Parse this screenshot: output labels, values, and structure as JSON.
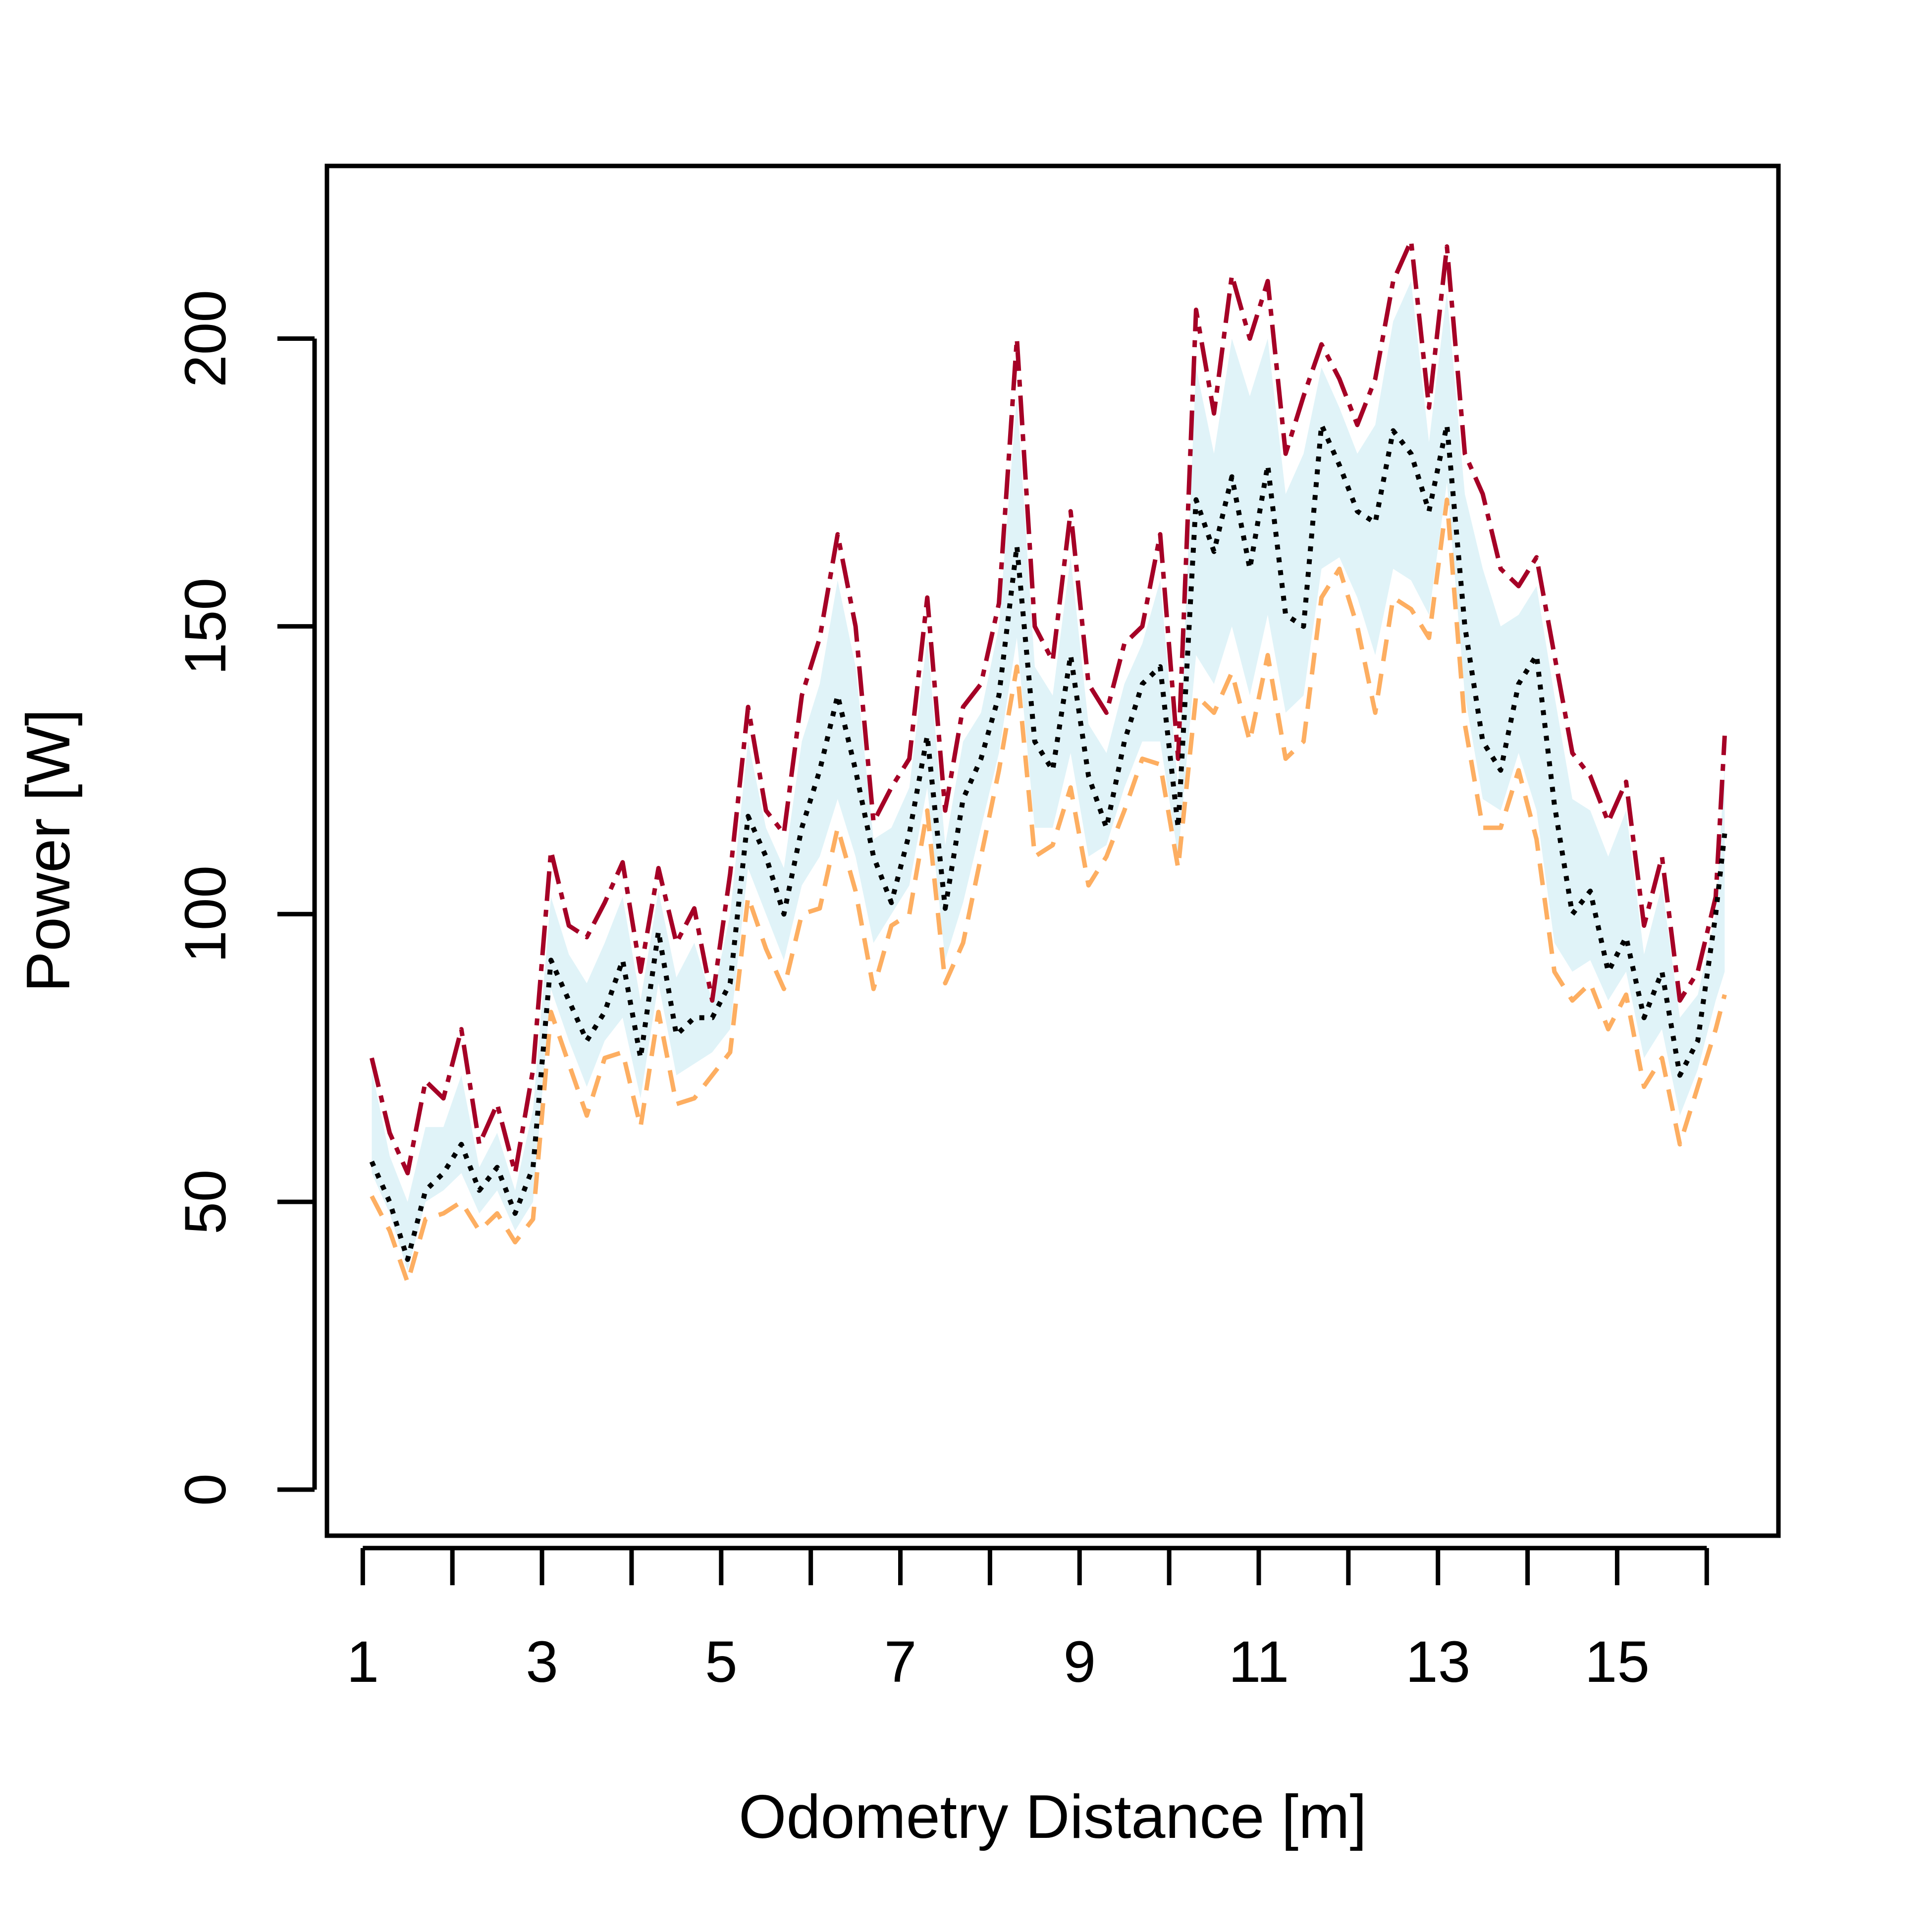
{
  "chart_data": {
    "type": "line",
    "title": "",
    "xlabel": "Odometry Distance [m]",
    "ylabel": "Power [W]",
    "xlim": [
      0.6,
      16.8
    ],
    "ylim": [
      -8,
      230
    ],
    "x_ticks": [
      1,
      2,
      3,
      4,
      5,
      6,
      7,
      8,
      9,
      10,
      11,
      12,
      13,
      14,
      15,
      16
    ],
    "x_tick_labels": [
      "1",
      "",
      "3",
      "",
      "5",
      "",
      "7",
      "",
      "9",
      "",
      "11",
      "",
      "13",
      "",
      "15",
      ""
    ],
    "y_ticks": [
      0,
      50,
      100,
      150,
      200
    ],
    "y_tick_labels": [
      "0",
      "50",
      "100",
      "150",
      "200"
    ],
    "grid": false,
    "legend": "none",
    "colors": {
      "upper": "#a50026",
      "median": "#000000",
      "lower": "#fdae61",
      "band": "#e0f3f8"
    },
    "x": [
      1.1,
      1.3,
      1.5,
      1.7,
      1.9,
      2.1,
      2.3,
      2.5,
      2.7,
      2.9,
      3.1,
      3.3,
      3.5,
      3.7,
      3.9,
      4.1,
      4.3,
      4.5,
      4.7,
      4.9,
      5.1,
      5.3,
      5.5,
      5.7,
      5.9,
      6.1,
      6.3,
      6.5,
      6.7,
      6.9,
      7.1,
      7.3,
      7.5,
      7.7,
      7.9,
      8.1,
      8.3,
      8.5,
      8.7,
      8.9,
      9.1,
      9.3,
      9.5,
      9.7,
      9.9,
      10.1,
      10.3,
      10.5,
      10.7,
      10.9,
      11.1,
      11.3,
      11.5,
      11.7,
      11.9,
      12.1,
      12.3,
      12.5,
      12.7,
      12.9,
      13.1,
      13.3,
      13.5,
      13.7,
      13.9,
      14.1,
      14.3,
      14.5,
      14.7,
      14.9,
      15.1,
      15.3,
      15.5,
      15.7,
      15.9,
      16.1,
      16.2
    ],
    "series": [
      {
        "role": "upper",
        "values": [
          75,
          62,
          55,
          71,
          68,
          80,
          60,
          67,
          55,
          73,
          111,
          98,
          96,
          102,
          109,
          90,
          108,
          95,
          101,
          85,
          107,
          136,
          118,
          114,
          138,
          148,
          166,
          150,
          116,
          122,
          127,
          155,
          118,
          136,
          140,
          154,
          200,
          150,
          144,
          170,
          140,
          135,
          147,
          150,
          166,
          127,
          205,
          187,
          211,
          200,
          210,
          180,
          190,
          199,
          193,
          185,
          193,
          210,
          217,
          188,
          216,
          180,
          173,
          160,
          157,
          162,
          145,
          128,
          124,
          116,
          123,
          98,
          110,
          85,
          90,
          103,
          131
        ]
      },
      {
        "role": "median",
        "values": [
          57,
          50,
          40,
          52,
          55,
          60,
          52,
          56,
          48,
          56,
          92,
          85,
          78,
          83,
          92,
          75,
          97,
          79,
          82,
          82,
          88,
          117,
          110,
          100,
          115,
          125,
          138,
          125,
          110,
          102,
          114,
          131,
          101,
          120,
          127,
          138,
          164,
          130,
          125,
          145,
          124,
          115,
          130,
          140,
          143,
          115,
          172,
          163,
          176,
          160,
          178,
          152,
          150,
          185,
          178,
          170,
          168,
          184,
          180,
          170,
          185,
          150,
          130,
          125,
          140,
          145,
          119,
          100,
          104,
          90,
          96,
          82,
          90,
          72,
          78,
          100,
          114
        ]
      },
      {
        "role": "lower",
        "values": [
          51,
          45,
          36,
          47,
          48,
          50,
          45,
          48,
          43,
          47,
          83,
          74,
          65,
          75,
          76,
          63,
          83,
          67,
          68,
          72,
          76,
          103,
          94,
          87,
          100,
          101,
          115,
          104,
          87,
          98,
          100,
          118,
          88,
          95,
          110,
          125,
          143,
          110,
          112,
          122,
          105,
          110,
          118,
          127,
          126,
          108,
          138,
          135,
          142,
          130,
          145,
          127,
          130,
          155,
          160,
          150,
          135,
          155,
          153,
          148,
          172,
          133,
          115,
          115,
          125,
          113,
          90,
          85,
          88,
          80,
          86,
          70,
          75,
          60,
          70,
          80,
          86
        ]
      }
    ],
    "band": {
      "upper": [
        73,
        58,
        50,
        63,
        63,
        72,
        56,
        62,
        52,
        66,
        103,
        93,
        88,
        95,
        103,
        85,
        104,
        89,
        95,
        85,
        100,
        130,
        115,
        108,
        130,
        140,
        158,
        143,
        113,
        115,
        122,
        148,
        112,
        130,
        135,
        150,
        190,
        143,
        138,
        162,
        133,
        128,
        140,
        147,
        158,
        122,
        195,
        180,
        200,
        190,
        200,
        173,
        180,
        195,
        188,
        180,
        185,
        203,
        210,
        182,
        208,
        173,
        160,
        150,
        152,
        157,
        138,
        120,
        118,
        110,
        118,
        93,
        105,
        82,
        86,
        100,
        126
      ],
      "lower": [
        55,
        48,
        38,
        50,
        52,
        55,
        48,
        52,
        45,
        50,
        87,
        78,
        70,
        78,
        82,
        68,
        88,
        72,
        74,
        76,
        80,
        108,
        100,
        92,
        105,
        110,
        120,
        110,
        95,
        100,
        105,
        122,
        92,
        102,
        115,
        128,
        148,
        115,
        115,
        128,
        110,
        112,
        122,
        130,
        130,
        110,
        145,
        140,
        150,
        138,
        152,
        135,
        138,
        160,
        162,
        155,
        145,
        160,
        158,
        152,
        175,
        138,
        120,
        118,
        128,
        118,
        95,
        90,
        92,
        85,
        90,
        75,
        80,
        65,
        73,
        85,
        90
      ]
    }
  }
}
